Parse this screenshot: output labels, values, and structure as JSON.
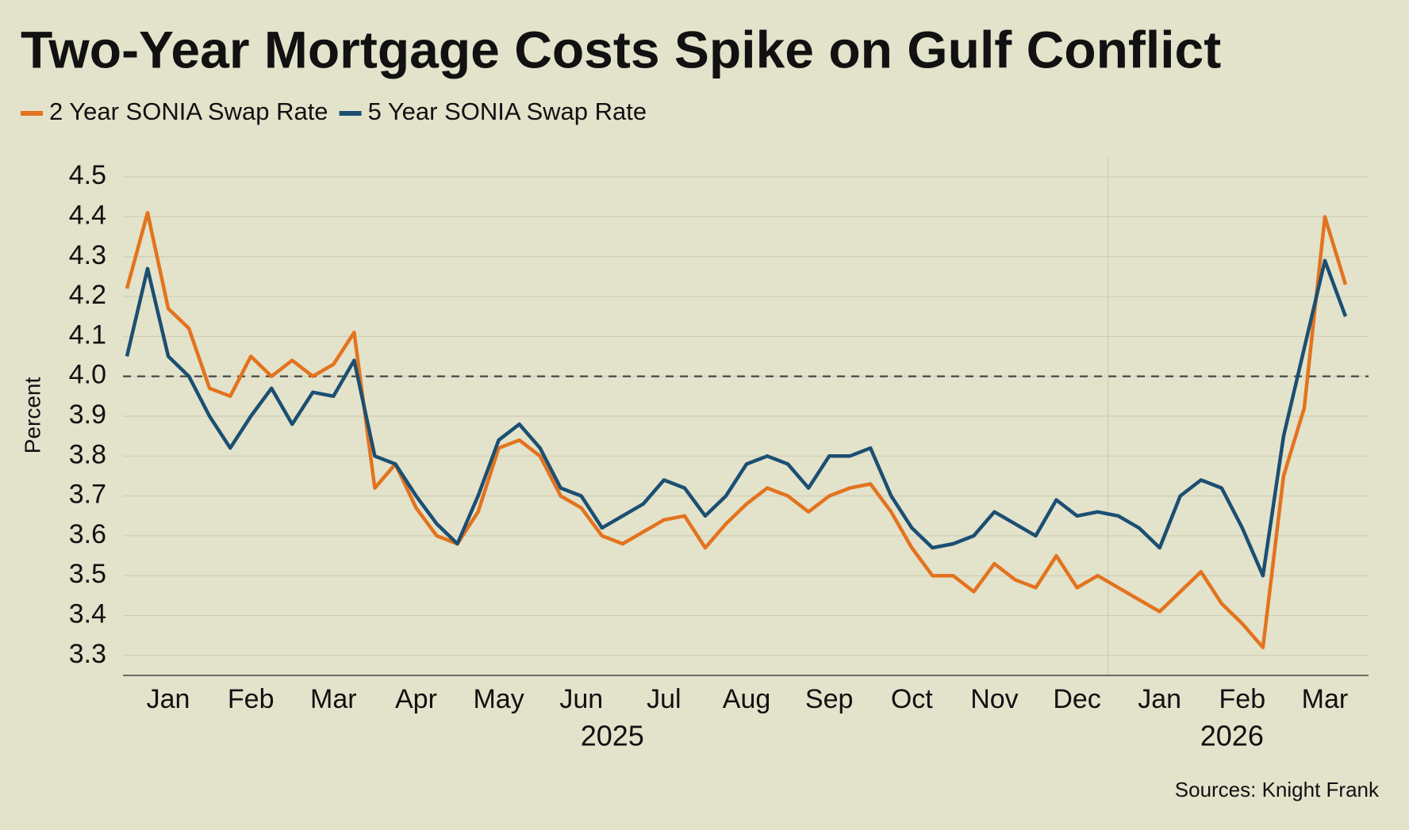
{
  "chart_data": {
    "type": "line",
    "title": "Two-Year Mortgage Costs Spike on Gulf Conflict",
    "y_label": "Percent",
    "source": "Sources: Knight Frank",
    "legend": "top-left",
    "grid": true,
    "reference_line": 4,
    "categories": [
      null,
      null,
      "Jan",
      null,
      null,
      null,
      "Feb",
      null,
      null,
      null,
      "Mar",
      null,
      null,
      null,
      "Apr",
      null,
      null,
      null,
      "May",
      null,
      null,
      null,
      "Jun",
      null,
      null,
      null,
      "Jul",
      null,
      null,
      null,
      "Aug",
      null,
      null,
      null,
      "Sep",
      null,
      null,
      null,
      "Oct",
      null,
      null,
      null,
      "Nov",
      null,
      null,
      null,
      "Dec",
      null,
      null,
      null,
      "Jan",
      null,
      null,
      null,
      "Feb",
      null,
      null,
      null,
      "Mar",
      null
    ],
    "year_labels": [
      "2025",
      "2026"
    ],
    "ylim": [
      3.25,
      4.55
    ],
    "yticks": [
      3.3,
      3.4,
      3.5,
      3.6,
      3.7,
      3.8,
      3.9,
      {
        "value": 4,
        "label": "4.0"
      },
      4.1,
      4.2,
      4.3,
      4.4,
      4.5
    ],
    "series": [
      {
        "name": "2 Year SONIA Swap Rate",
        "color": "#e3731e",
        "values": [
          4.22,
          4.41,
          4.17,
          4.12,
          3.97,
          3.95,
          4.05,
          4.0,
          4.04,
          4.0,
          4.03,
          4.11,
          3.72,
          3.78,
          3.67,
          3.6,
          3.58,
          3.66,
          3.82,
          3.84,
          3.8,
          3.7,
          3.67,
          3.6,
          3.58,
          3.61,
          3.64,
          3.65,
          3.57,
          3.63,
          3.68,
          3.72,
          3.7,
          3.66,
          3.7,
          3.72,
          3.73,
          3.66,
          3.57,
          3.5,
          3.5,
          3.46,
          3.53,
          3.49,
          3.47,
          3.55,
          3.47,
          3.5,
          3.47,
          3.44,
          3.41,
          3.46,
          3.51,
          3.43,
          3.38,
          3.32,
          3.75,
          3.92,
          4.4,
          4.23
        ]
      },
      {
        "name": "5 Year SONIA Swap Rate",
        "color": "#1b4f72",
        "values": [
          4.05,
          4.27,
          4.05,
          4.0,
          3.9,
          3.82,
          3.9,
          3.97,
          3.88,
          3.96,
          3.95,
          4.04,
          3.8,
          3.78,
          3.7,
          3.63,
          3.58,
          3.7,
          3.84,
          3.88,
          3.82,
          3.72,
          3.7,
          3.62,
          3.65,
          3.68,
          3.74,
          3.72,
          3.65,
          3.7,
          3.78,
          3.8,
          3.78,
          3.72,
          3.8,
          3.8,
          3.82,
          3.7,
          3.62,
          3.57,
          3.58,
          3.6,
          3.66,
          3.63,
          3.6,
          3.69,
          3.65,
          3.66,
          3.65,
          3.62,
          3.57,
          3.7,
          3.74,
          3.72,
          3.62,
          3.5,
          3.85,
          4.07,
          4.29,
          4.15
        ]
      }
    ]
  }
}
